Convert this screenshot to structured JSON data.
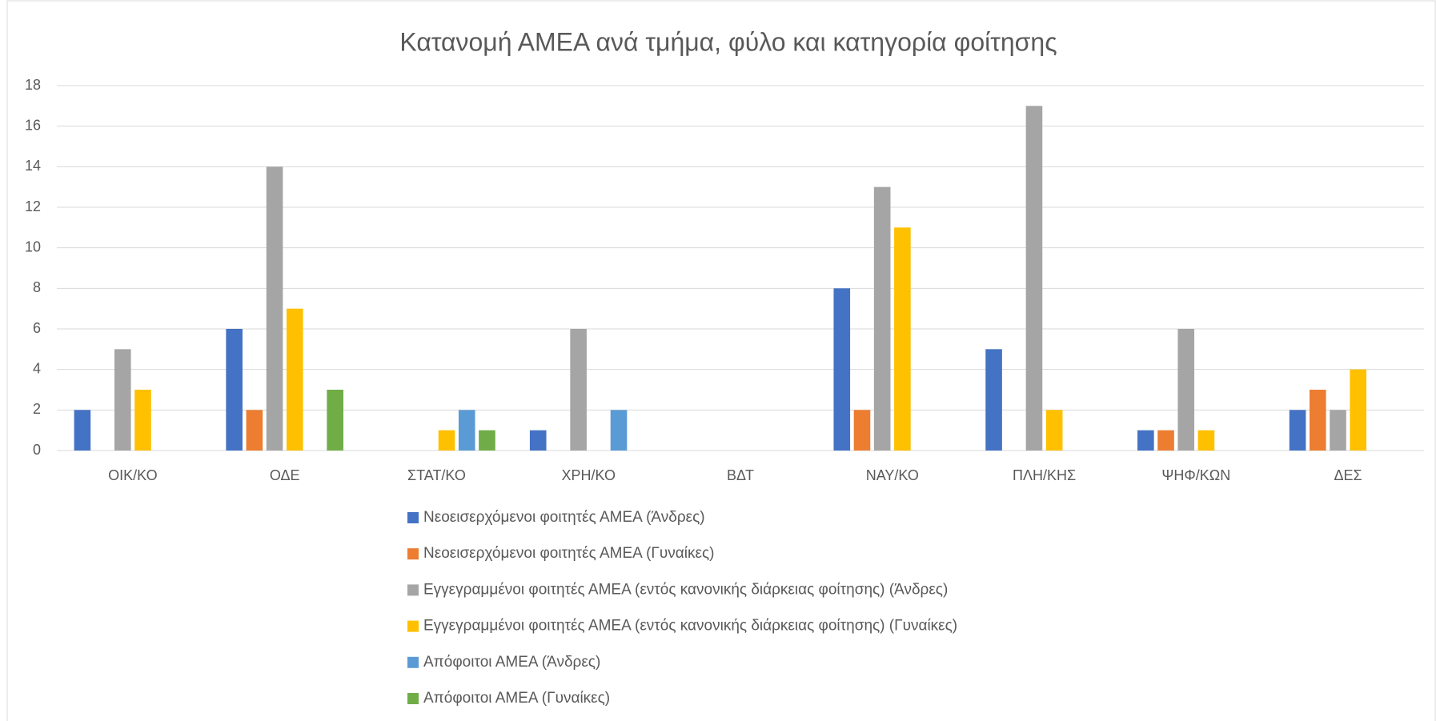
{
  "chart_data": {
    "type": "bar",
    "title": "Κατανομή ΑΜΕΑ ανά τμήμα, φύλο και κατηγορία φοίτησης",
    "categories": [
      "ΟΙΚ/ΚΟ",
      "ΟΔΕ",
      "ΣΤΑΤ/ΚΟ",
      "ΧΡΗ/ΚΟ",
      "ΒΔΤ",
      "ΝΑΥ/ΚΟ",
      "ΠΛΗ/ΚΗΣ",
      "ΨΗΦ/ΚΩΝ",
      "ΔΕΣ"
    ],
    "series": [
      {
        "name": "Νεοεισερχόμενοι φοιτητές ΑΜΕΑ (Άνδρες)",
        "color": "#4472c4",
        "values": [
          2,
          6,
          0,
          1,
          0,
          8,
          5,
          1,
          2
        ]
      },
      {
        "name": "Νεοεισερχόμενοι φοιτητές ΑΜΕΑ (Γυναίκες)",
        "color": "#ed7d31",
        "values": [
          0,
          2,
          0,
          0,
          0,
          2,
          0,
          1,
          3
        ]
      },
      {
        "name": "Εγγεγραμμένοι φοιτητές ΑΜΕΑ (εντός κανονικής διάρκειας φοίτησης) (Άνδρες)",
        "color": "#a5a5a5",
        "values": [
          5,
          14,
          0,
          6,
          0,
          13,
          17,
          6,
          2
        ]
      },
      {
        "name": "Εγγεγραμμένοι φοιτητές ΑΜΕΑ (εντός κανονικής διάρκειας φοίτησης) (Γυναίκες)",
        "color": "#ffc000",
        "values": [
          3,
          7,
          1,
          0,
          0,
          11,
          2,
          1,
          4
        ]
      },
      {
        "name": "Απόφοιτοι ΑΜΕΑ (Άνδρες)",
        "color": "#5b9bd5",
        "values": [
          0,
          0,
          2,
          2,
          0,
          0,
          0,
          0,
          0
        ]
      },
      {
        "name": "Απόφοιτοι ΑΜΕΑ (Γυναίκες)",
        "color": "#70ad47",
        "values": [
          0,
          3,
          1,
          0,
          0,
          0,
          0,
          0,
          0
        ]
      }
    ],
    "ylim": [
      0,
      18
    ],
    "yticks": [
      0,
      2,
      4,
      6,
      8,
      10,
      12,
      14,
      16,
      18
    ],
    "grid": true,
    "legend": "bottom"
  }
}
